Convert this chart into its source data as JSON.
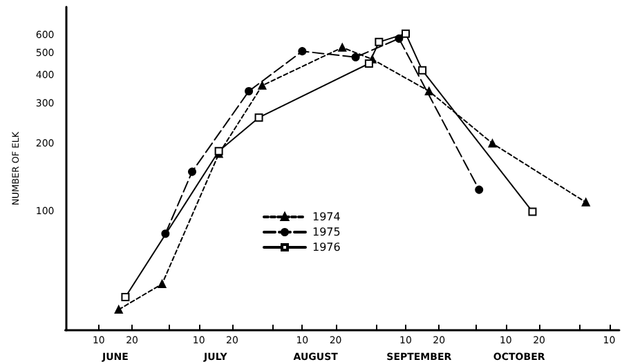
{
  "chart_data": {
    "type": "line",
    "ylabel": "NUMBER OF ELK",
    "log": "y",
    "ylim": [
      30,
      800
    ],
    "yticks": [
      100,
      200,
      300,
      400,
      500,
      600
    ],
    "xlim": [
      "--05-31",
      "--11-13"
    ],
    "xticks": [
      {
        "value": "--06-10",
        "label": "10"
      },
      {
        "value": "--06-20",
        "label": "20"
      },
      {
        "value": "--07-01",
        "label": null
      },
      {
        "value": "--07-10",
        "label": "10"
      },
      {
        "value": "--07-20",
        "label": "20"
      },
      {
        "value": "--08-01",
        "label": null
      },
      {
        "value": "--08-10",
        "label": "10"
      },
      {
        "value": "--08-20",
        "label": "20"
      },
      {
        "value": "--09-01",
        "label": null
      },
      {
        "value": "--09-10",
        "label": "10"
      },
      {
        "value": "--09-20",
        "label": "20"
      },
      {
        "value": "--10-01",
        "label": null
      },
      {
        "value": "--10-10",
        "label": "10"
      },
      {
        "value": "--10-20",
        "label": "20"
      },
      {
        "value": "--11-01",
        "label": null
      },
      {
        "value": "--11-10",
        "label": "10"
      }
    ],
    "x2lim": [
      "--05-31",
      "--11-13"
    ],
    "x2ticks": [
      {
        "value": "--06-15",
        "label": "JUNE"
      },
      {
        "value": "--07-15",
        "label": "JULY"
      },
      {
        "value": "--08-14",
        "label": "AUGUST"
      },
      {
        "value": "--09-14",
        "label": "SEPTEMBER"
      },
      {
        "value": "--10-14",
        "label": "OCTOBER"
      }
    ],
    "grid": false,
    "legend": "center",
    "series": [
      {
        "name": "1974",
        "color": "#000000",
        "marker": "triangle",
        "line_style": "dotted",
        "x": [
          "--06-16",
          "--06-29",
          "--07-16",
          "--07-29",
          "--08-22",
          "--08-31",
          "--09-17",
          "--10-06",
          "--11-03"
        ],
        "values": [
          37,
          48,
          180,
          360,
          530,
          470,
          340,
          200,
          110
        ]
      },
      {
        "name": "1975",
        "color": "#000000",
        "marker": "circle",
        "line_style": "dashed",
        "x": [
          "--06-30",
          "--07-08",
          "--07-25",
          "--08-10",
          "--08-26",
          "--09-08",
          "--10-02"
        ],
        "values": [
          80,
          150,
          340,
          510,
          480,
          580,
          125
        ]
      },
      {
        "name": "1976",
        "color": "#000000",
        "marker": "square",
        "line_style": "solid",
        "x": [
          "--06-18",
          "--07-16",
          "--07-28",
          "--08-30",
          "--09-02",
          "--09-10",
          "--09-15",
          "--10-18"
        ],
        "values": [
          42,
          185,
          260,
          450,
          560,
          610,
          420,
          100
        ]
      }
    ]
  }
}
